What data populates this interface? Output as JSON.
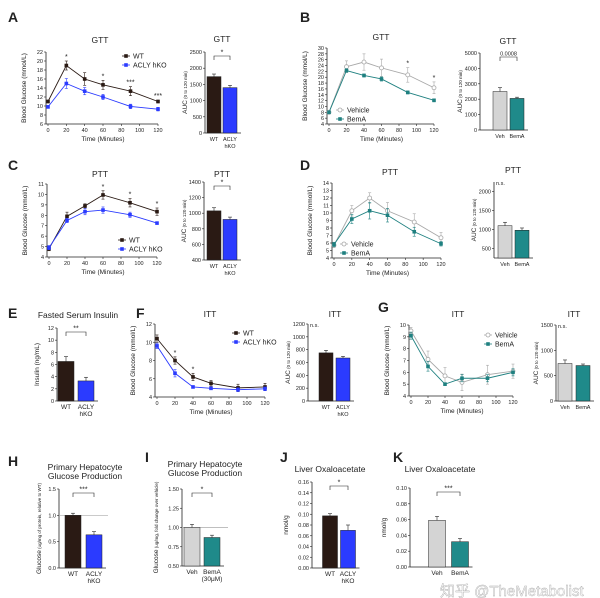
{
  "panel_letters": [
    "A",
    "B",
    "C",
    "D",
    "E",
    "F",
    "G",
    "H",
    "I",
    "J",
    "K"
  ],
  "watermark": "知乎 @TheMetabolist",
  "colors": {
    "WT": "#2a1a14",
    "ACLY hKO": "#2b3bff",
    "Vehicle": "#a8a8a8",
    "BemA": "#1f8080",
    "Veh": "#d4d4d4",
    "BemA_bar": "#1f8a8a"
  },
  "chart_data": [
    {
      "id": "A-line",
      "type": "line",
      "title": "GTT",
      "xlabel": "Time (Minutes)",
      "ylabel": "Blood Glucose (mmol/L)",
      "x": [
        0,
        20,
        40,
        60,
        90,
        120
      ],
      "xlim": [
        0,
        120
      ],
      "ylim": [
        6,
        22
      ],
      "xticks": [
        "0",
        "20",
        "40",
        "60",
        "80",
        "100",
        "120"
      ],
      "yticks": [
        "6",
        "8",
        "10",
        "12",
        "14",
        "16",
        "18",
        "20",
        "22"
      ],
      "legend": "top-right",
      "series": [
        {
          "name": "WT",
          "marker": "square-filled",
          "color": "#2a1a14",
          "values": [
            11,
            19,
            16,
            14.7,
            13.3,
            11
          ],
          "err": [
            0.3,
            1,
            1.4,
            1,
            1,
            0.3
          ]
        },
        {
          "name": "ACLY hKO",
          "marker": "square-filled",
          "color": "#2b3bff",
          "values": [
            9.8,
            15,
            13.3,
            12,
            9.9,
            9.3
          ],
          "err": [
            0.3,
            1.1,
            0.8,
            0.6,
            0.5,
            0.4
          ]
        }
      ],
      "annotations": [
        {
          "x": 20,
          "text": "*"
        },
        {
          "x": 60,
          "text": "*"
        },
        {
          "x": 90,
          "text": "***"
        },
        {
          "x": 120,
          "text": "***"
        }
      ]
    },
    {
      "id": "A-auc",
      "type": "bar",
      "title": "GTT",
      "ylabel": "AUC",
      "ylabel_sub": "(0 to 120 min)",
      "categories": [
        "WT",
        "ACLY hKO"
      ],
      "values": [
        1740,
        1400
      ],
      "err": [
        80,
        70
      ],
      "colors": [
        "#2a1a14",
        "#2b3bff"
      ],
      "ylim": [
        0,
        2500
      ],
      "yticks": [
        "0",
        "500",
        "1000",
        "1500",
        "2000",
        "2500"
      ],
      "sig": "*"
    },
    {
      "id": "B-line",
      "type": "line",
      "title": "GTT",
      "xlabel": "Time (Minutes)",
      "ylabel": "Blood Glucose (mmol/L)",
      "x": [
        0,
        20,
        40,
        60,
        90,
        120
      ],
      "xlim": [
        0,
        120
      ],
      "ylim": [
        4,
        30
      ],
      "xticks": [
        "0",
        "20",
        "40",
        "60",
        "80",
        "100",
        "120"
      ],
      "yticks": [
        "4",
        "6",
        "8",
        "10",
        "12",
        "14",
        "16",
        "18",
        "20",
        "22",
        "24",
        "26",
        "28",
        "30"
      ],
      "legend": "bottom-left",
      "series": [
        {
          "name": "Vehicle",
          "marker": "circle-open",
          "color": "#a8a8a8",
          "values": [
            8,
            23.6,
            25.2,
            23.2,
            20.8,
            16.4
          ],
          "err": [
            0.5,
            2,
            2.8,
            3,
            2.5,
            2
          ]
        },
        {
          "name": "BemA",
          "marker": "square-filled",
          "color": "#1f8080",
          "values": [
            8,
            22.3,
            20.6,
            19.4,
            14.8,
            12.1
          ],
          "err": [
            0.4,
            0.6,
            0.5,
            0.7,
            0.5,
            0.5
          ]
        }
      ],
      "annotations": [
        {
          "x": 90,
          "text": "*"
        },
        {
          "x": 120,
          "text": "*"
        }
      ]
    },
    {
      "id": "B-auc",
      "type": "bar",
      "title": "GTT",
      "ylabel": "AUC",
      "ylabel_sub": "(0 to 120 min)",
      "categories": [
        "Veh",
        "BemA"
      ],
      "values": [
        2500,
        2050
      ],
      "err": [
        250,
        80
      ],
      "colors": [
        "#d4d4d4",
        "#1f8a8a"
      ],
      "ylim": [
        0,
        5000
      ],
      "yticks": [
        "0",
        "1000",
        "2000",
        "3000",
        "4000",
        "5000"
      ],
      "sig": "0.0008"
    },
    {
      "id": "C-line",
      "type": "line",
      "title": "PTT",
      "xlabel": "Time (Minutes)",
      "ylabel": "Blood Glucose (mmol/L)",
      "x": [
        0,
        20,
        40,
        60,
        90,
        120
      ],
      "xlim": [
        0,
        120
      ],
      "ylim": [
        4,
        11
      ],
      "xticks": [
        "0",
        "20",
        "40",
        "60",
        "80",
        "100",
        "120"
      ],
      "yticks": [
        "4",
        "5",
        "6",
        "7",
        "8",
        "9",
        "10",
        "11"
      ],
      "legend": "bottom-right",
      "series": [
        {
          "name": "WT",
          "marker": "square-filled",
          "color": "#2a1a14",
          "values": [
            4.8,
            7.9,
            8.9,
            9.95,
            9.2,
            8.35
          ],
          "err": [
            0.2,
            0.4,
            0.2,
            0.4,
            0.4,
            0.35
          ]
        },
        {
          "name": "ACLY hKO",
          "marker": "square-filled",
          "color": "#2b3bff",
          "values": [
            4.9,
            7.5,
            8.35,
            8.5,
            8.05,
            7.25
          ],
          "err": [
            0.2,
            0.2,
            0.3,
            0.3,
            0.25,
            0.1
          ]
        }
      ],
      "annotations": [
        {
          "x": 60,
          "text": "*"
        },
        {
          "x": 90,
          "text": "*"
        },
        {
          "x": 120,
          "text": "*"
        }
      ]
    },
    {
      "id": "C-auc",
      "type": "bar",
      "title": "PTT",
      "ylabel": "AUC",
      "ylabel_sub": "(0 to 120 min)",
      "categories": [
        "WT",
        "ACLY hKO"
      ],
      "values": [
        1030,
        920
      ],
      "err": [
        40,
        30
      ],
      "colors": [
        "#2a1a14",
        "#2b3bff"
      ],
      "ylim": [
        400,
        1400
      ],
      "yticks": [
        "400",
        "600",
        "800",
        "1000",
        "1200",
        "1400"
      ],
      "sig": "*"
    },
    {
      "id": "D-line",
      "type": "line",
      "title": "PTT",
      "xlabel": "Time (Minutes)",
      "ylabel": "Blood Glucose (mmol/L)",
      "x": [
        0,
        20,
        40,
        60,
        90,
        120
      ],
      "xlim": [
        0,
        120
      ],
      "ylim": [
        4,
        14
      ],
      "xticks": [
        "0",
        "20",
        "40",
        "60",
        "80",
        "100",
        "120"
      ],
      "yticks": [
        "4",
        "5",
        "6",
        "7",
        "8",
        "9",
        "10",
        "11",
        "12",
        "13",
        "14"
      ],
      "legend": "bottom-left",
      "series": [
        {
          "name": "Vehicle",
          "marker": "circle-open",
          "color": "#a8a8a8",
          "values": [
            5.7,
            10.3,
            12,
            10.3,
            8.8,
            6.7
          ],
          "err": [
            0.3,
            0.7,
            0.7,
            1.1,
            1.1,
            0.7
          ]
        },
        {
          "name": "BemA",
          "marker": "square-filled",
          "color": "#1f8080",
          "values": [
            5.8,
            9.2,
            10.3,
            9.7,
            7.5,
            5.9
          ],
          "err": [
            0.3,
            0.6,
            1.1,
            0.9,
            0.6,
            0.3
          ]
        }
      ],
      "annotations": []
    },
    {
      "id": "D-auc",
      "type": "bar",
      "title": "PTT",
      "ylabel": "AUC",
      "ylabel_sub": "(0 to 120 min)",
      "categories": [
        "Veh",
        "BemA"
      ],
      "values": [
        1100,
        980
      ],
      "err": [
        90,
        60
      ],
      "colors": [
        "#d4d4d4",
        "#1f8a8a"
      ],
      "ylim": [
        250,
        2250
      ],
      "yticks": [
        "500",
        "1000",
        "1500",
        "2000"
      ],
      "sig": "n.s."
    },
    {
      "id": "E",
      "type": "bar",
      "title": "Fasted Serum Insulin",
      "ylabel": "Insulin (ng/mL)",
      "categories": [
        "WT",
        "ACLY hKO"
      ],
      "values": [
        6.5,
        3.3
      ],
      "err": [
        0.8,
        0.6
      ],
      "colors": [
        "#2a1a14",
        "#2b3bff"
      ],
      "ylim": [
        0,
        12
      ],
      "yticks": [
        "0",
        "2",
        "4",
        "6",
        "8",
        "10",
        "12"
      ],
      "sig": "**"
    },
    {
      "id": "F-line",
      "type": "line",
      "title": "ITT",
      "xlabel": "Time (Minutes)",
      "ylabel": "Blood Glucose (mmol/L)",
      "x": [
        0,
        20,
        40,
        60,
        90,
        120
      ],
      "xlim": [
        0,
        120
      ],
      "ylim": [
        4,
        12
      ],
      "xticks": [
        "0",
        "20",
        "40",
        "60",
        "80",
        "100",
        "120"
      ],
      "yticks": [
        "4",
        "6",
        "8",
        "10",
        "12"
      ],
      "legend": "top-right",
      "series": [
        {
          "name": "WT",
          "marker": "square-filled",
          "color": "#2a1a14",
          "values": [
            10.4,
            8,
            6.2,
            5.5,
            5,
            5.1
          ],
          "err": [
            0.4,
            0.4,
            0.4,
            0.3,
            0.4,
            0.4
          ]
        },
        {
          "name": "ACLY hKO",
          "marker": "square-filled",
          "color": "#2b3bff",
          "values": [
            9.6,
            6.6,
            5.1,
            4.95,
            4.8,
            4.9
          ],
          "err": [
            0.3,
            0.4,
            0.1,
            0.1,
            0.2,
            0.2
          ]
        }
      ],
      "annotations": [
        {
          "x": 20,
          "text": "*"
        },
        {
          "x": 40,
          "text": "*"
        }
      ]
    },
    {
      "id": "F-auc",
      "type": "bar",
      "title": "ITT",
      "ylabel": "AUC",
      "ylabel_sub": "(0 to 120 min)",
      "categories": [
        "WT",
        "ACLY hKO"
      ],
      "values": [
        750,
        670
      ],
      "err": [
        40,
        25
      ],
      "colors": [
        "#2a1a14",
        "#2b3bff"
      ],
      "ylim": [
        0,
        1200
      ],
      "yticks": [
        "0",
        "200",
        "400",
        "600",
        "800",
        "1000",
        "1200"
      ],
      "sig": "n.s."
    },
    {
      "id": "G-line",
      "type": "line",
      "title": "ITT",
      "xlabel": "Time (Minutes)",
      "ylabel": "Blood Glucose (mmol/L)",
      "x": [
        0,
        20,
        40,
        60,
        90,
        120
      ],
      "xlim": [
        0,
        120
      ],
      "ylim": [
        4,
        10
      ],
      "xticks": [
        "0",
        "20",
        "40",
        "60",
        "80",
        "100",
        "120"
      ],
      "yticks": [
        "4",
        "5",
        "6",
        "7",
        "8",
        "9",
        "10"
      ],
      "legend": "top-right",
      "series": [
        {
          "name": "Vehicle",
          "marker": "circle-open",
          "color": "#a8a8a8",
          "values": [
            9.5,
            7.1,
            5.7,
            5.15,
            5.8,
            6.1
          ],
          "err": [
            0.3,
            0.7,
            0.7,
            0.7,
            0.8,
            0.6
          ]
        },
        {
          "name": "BemA",
          "marker": "square-filled",
          "color": "#1f8080",
          "values": [
            9.1,
            6.5,
            5,
            5.5,
            5.5,
            6
          ],
          "err": [
            0.3,
            0.4,
            0.1,
            0.3,
            0.3,
            0.3
          ]
        }
      ],
      "annotations": []
    },
    {
      "id": "G-auc",
      "type": "bar",
      "title": "ITT",
      "ylabel": "AUC",
      "ylabel_sub": "(0 to 120 min)",
      "categories": [
        "Veh",
        "BemA"
      ],
      "values": [
        740,
        700
      ],
      "err": [
        70,
        30
      ],
      "colors": [
        "#d4d4d4",
        "#1f8a8a"
      ],
      "ylim": [
        0,
        1500
      ],
      "yticks": [
        "0",
        "500",
        "1000",
        "1500"
      ],
      "sig": "n.s."
    },
    {
      "id": "H",
      "type": "bar",
      "title": "Primary Hepatocyte\nGlucose Production",
      "ylabel": "Glucose",
      "ylabel_sub": "(ug/mg of protein, relative to WT)",
      "categories": [
        "WT",
        "ACLY hKO"
      ],
      "values": [
        1.0,
        0.63
      ],
      "err": [
        0.04,
        0.06
      ],
      "colors": [
        "#2a1a14",
        "#2b3bff"
      ],
      "ylim": [
        0,
        1.5
      ],
      "yticks": [
        "0.0",
        "0.5",
        "1.0",
        "1.5"
      ],
      "refline": 1.0,
      "sig": "***"
    },
    {
      "id": "I",
      "type": "bar",
      "title": "Primary Hepatocyte\nGlucose Production",
      "ylabel": "Glucose",
      "ylabel_sub": "(ug/mg, fold change over vehicle)",
      "categories": [
        "Veh",
        "BemA (30μM)"
      ],
      "values": [
        1.0,
        0.87
      ],
      "err": [
        0.04,
        0.03
      ],
      "colors": [
        "#d4d4d4",
        "#1f8a8a"
      ],
      "ylim": [
        0.5,
        1.5
      ],
      "yticks": [
        "0.50",
        "0.75",
        "1.00",
        "1.25",
        "1.50"
      ],
      "refline": 1.0,
      "sig": "*"
    },
    {
      "id": "J",
      "type": "bar",
      "title": "Liver Oxaloacetate",
      "ylabel": "nmol/g",
      "categories": [
        "WT",
        "ACLY hKO"
      ],
      "values": [
        0.097,
        0.07
      ],
      "err": [
        0.004,
        0.01
      ],
      "colors": [
        "#2a1a14",
        "#2b3bff"
      ],
      "ylim": [
        0,
        0.16
      ],
      "yticks": [
        "0.00",
        "0.02",
        "0.04",
        "0.06",
        "0.08",
        "0.10",
        "0.12",
        "0.14",
        "0.16"
      ],
      "sig": "*"
    },
    {
      "id": "K",
      "type": "bar",
      "title": "Liver Oxaloacetate",
      "ylabel": "nmol/g",
      "categories": [
        "Veh",
        "BemA"
      ],
      "values": [
        0.059,
        0.032
      ],
      "err": [
        0.005,
        0.004
      ],
      "colors": [
        "#d4d4d4",
        "#1f8a8a"
      ],
      "ylim": [
        0,
        0.1
      ],
      "yticks": [
        "0.00",
        "0.02",
        "0.04",
        "0.06",
        "0.08",
        "0.10"
      ],
      "sig": "***"
    }
  ]
}
